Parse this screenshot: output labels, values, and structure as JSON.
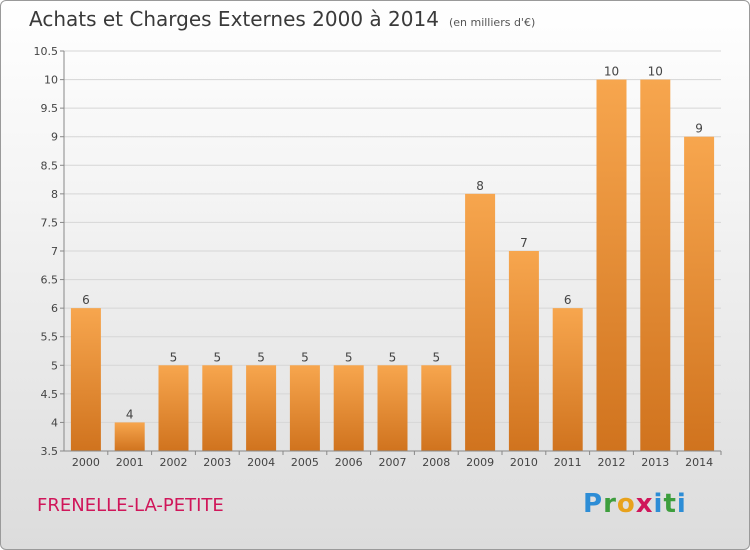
{
  "header": {
    "title": "Achats et Charges Externes 2000 à 2014",
    "unit": "(en milliers d'€)"
  },
  "footer": {
    "commune": "FRENELLE-LA-PETITE",
    "logo": "Proxiti"
  },
  "colors": {
    "bar_top": "#f7a64e",
    "bar_bottom": "#d0731e",
    "grid": "#d6d6d6",
    "axis": "#888888"
  },
  "chart_data": {
    "type": "bar",
    "title": "Achats et Charges Externes 2000 à 2014",
    "subtitle": "(en milliers d'€)",
    "categories": [
      "2000",
      "2001",
      "2002",
      "2003",
      "2004",
      "2005",
      "2006",
      "2007",
      "2008",
      "2009",
      "2010",
      "2011",
      "2012",
      "2013",
      "2014"
    ],
    "values": [
      6,
      4,
      5,
      5,
      5,
      5,
      5,
      5,
      5,
      8,
      7,
      6,
      10,
      10,
      9
    ],
    "ylim": [
      3.5,
      10.5
    ],
    "yticks": [
      3.5,
      4,
      4.5,
      5,
      5.5,
      6,
      6.5,
      7,
      7.5,
      8,
      8.5,
      9,
      9.5,
      10,
      10.5
    ],
    "xlabel": "",
    "ylabel": "",
    "grid": true,
    "legend": "none"
  }
}
